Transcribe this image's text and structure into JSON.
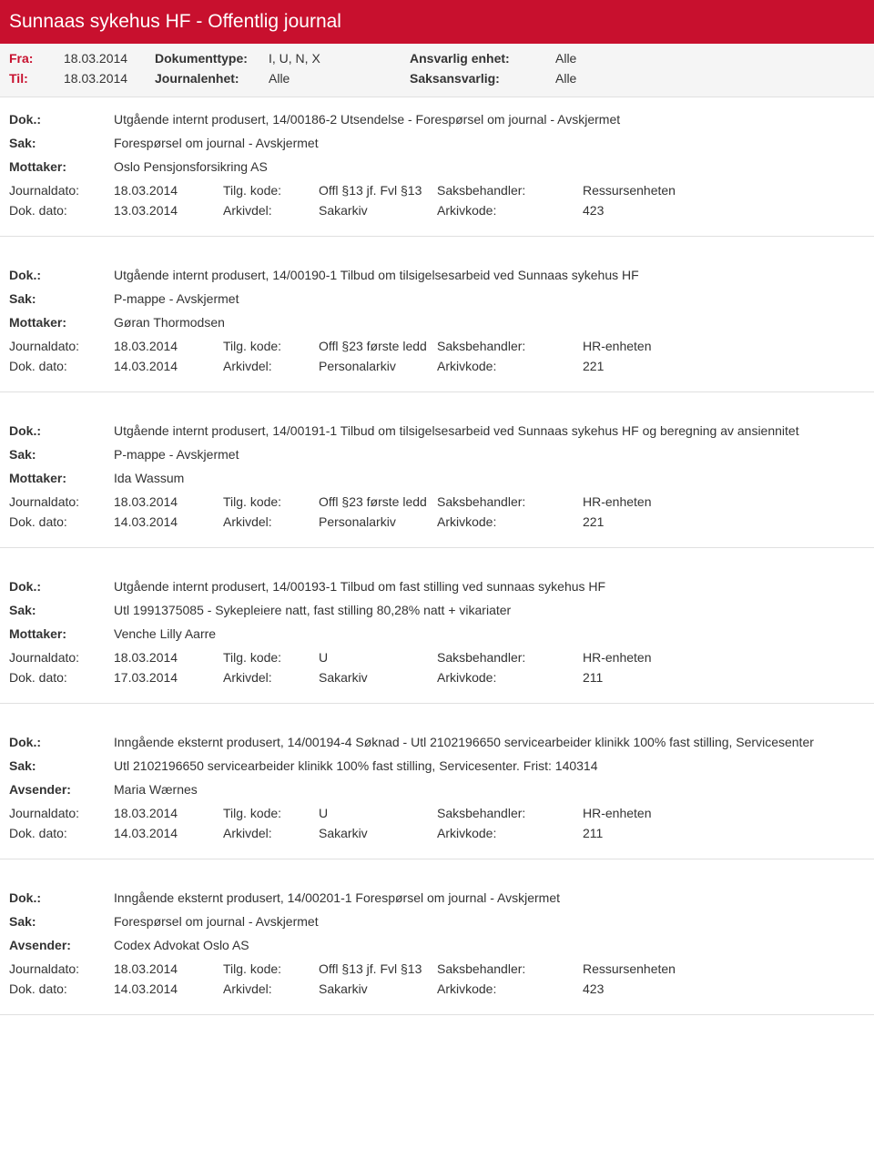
{
  "header": {
    "title": "Sunnaas sykehus HF - Offentlig journal"
  },
  "filter": {
    "fra_label": "Fra:",
    "fra_value": "18.03.2014",
    "til_label": "Til:",
    "til_value": "18.03.2014",
    "doktype_label": "Dokumenttype:",
    "doktype_value": "I, U, N, X",
    "journalenhet_label": "Journalenhet:",
    "journalenhet_value": "Alle",
    "ansvarlig_label": "Ansvarlig enhet:",
    "ansvarlig_value": "Alle",
    "saksansvarlig_label": "Saksansvarlig:",
    "saksansvarlig_value": "Alle"
  },
  "labels": {
    "dok": "Dok.:",
    "sak": "Sak:",
    "mottaker": "Mottaker:",
    "avsender": "Avsender:",
    "journaldato": "Journaldato:",
    "dokdato": "Dok. dato:",
    "tilgkode": "Tilg. kode:",
    "arkivdel": "Arkivdel:",
    "saksbehandler": "Saksbehandler:",
    "arkivkode": "Arkivkode:"
  },
  "entries": [
    {
      "dok": "Utgående internt produsert, 14/00186-2 Utsendelse - Forespørsel om journal - Avskjermet",
      "sak": "Forespørsel om journal - Avskjermet",
      "party_label": "Mottaker:",
      "party": "Oslo Pensjonsforsikring AS",
      "journaldato": "18.03.2014",
      "tilgkode": "Offl §13 jf. Fvl §13",
      "saksbehandler": "Ressursenheten",
      "dokdato": "13.03.2014",
      "arkivdel": "Sakarkiv",
      "arkivkode": "423"
    },
    {
      "dok": "Utgående internt produsert, 14/00190-1 Tilbud om tilsigelsesarbeid ved Sunnaas sykehus HF",
      "sak": "P-mappe - Avskjermet",
      "party_label": "Mottaker:",
      "party": "Gøran Thormodsen",
      "journaldato": "18.03.2014",
      "tilgkode": "Offl §23 første ledd",
      "saksbehandler": "HR-enheten",
      "dokdato": "14.03.2014",
      "arkivdel": "Personalarkiv",
      "arkivkode": "221"
    },
    {
      "dok": "Utgående internt produsert, 14/00191-1 Tilbud om tilsigelsesarbeid ved Sunnaas sykehus HF og beregning av ansiennitet",
      "sak": "P-mappe - Avskjermet",
      "party_label": "Mottaker:",
      "party": "Ida Wassum",
      "journaldato": "18.03.2014",
      "tilgkode": "Offl §23 første ledd",
      "saksbehandler": "HR-enheten",
      "dokdato": "14.03.2014",
      "arkivdel": "Personalarkiv",
      "arkivkode": "221"
    },
    {
      "dok": "Utgående internt produsert, 14/00193-1 Tilbud om fast stilling ved sunnaas sykehus HF",
      "sak": "Utl 1991375085 - Sykepleiere natt, fast stilling 80,28% natt + vikariater",
      "party_label": "Mottaker:",
      "party": "Venche Lilly Aarre",
      "journaldato": "18.03.2014",
      "tilgkode": "U",
      "saksbehandler": "HR-enheten",
      "dokdato": "17.03.2014",
      "arkivdel": "Sakarkiv",
      "arkivkode": "211"
    },
    {
      "dok": "Inngående eksternt produsert, 14/00194-4 Søknad -  Utl 2102196650 servicearbeider klinikk 100% fast stilling, Servicesenter",
      "sak": "Utl 2102196650 servicearbeider klinikk 100% fast stilling, Servicesenter. Frist: 140314",
      "party_label": "Avsender:",
      "party": "Maria Wærnes",
      "journaldato": "18.03.2014",
      "tilgkode": "U",
      "saksbehandler": "HR-enheten",
      "dokdato": "14.03.2014",
      "arkivdel": "Sakarkiv",
      "arkivkode": "211"
    },
    {
      "dok": "Inngående eksternt produsert, 14/00201-1 Forespørsel om journal - Avskjermet",
      "sak": "Forespørsel om journal - Avskjermet",
      "party_label": "Avsender:",
      "party": "Codex Advokat Oslo AS",
      "journaldato": "18.03.2014",
      "tilgkode": "Offl §13 jf. Fvl §13",
      "saksbehandler": "Ressursenheten",
      "dokdato": "14.03.2014",
      "arkivdel": "Sakarkiv",
      "arkivkode": "423"
    }
  ]
}
